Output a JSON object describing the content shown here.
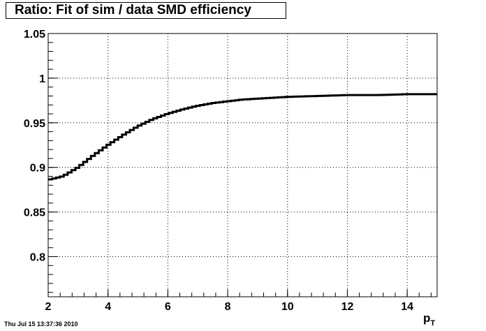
{
  "chart_data": {
    "type": "line",
    "style": "histogram-step",
    "title": "Ratio: Fit of sim / data SMD efficiency",
    "xlabel_main": "p",
    "xlabel_sub": "T",
    "ylabel": "",
    "xlim": [
      2,
      15
    ],
    "ylim": [
      0.755,
      1.05
    ],
    "grid": true,
    "x_ticks": [
      2,
      4,
      6,
      8,
      10,
      12,
      14
    ],
    "x_tick_labels": [
      "2",
      "4",
      "6",
      "8",
      "10",
      "12",
      "14"
    ],
    "y_ticks": [
      0.8,
      0.85,
      0.9,
      0.95,
      1.0,
      1.05
    ],
    "y_tick_labels": [
      "0.8",
      "0.85",
      "0.9",
      "0.95",
      "1",
      "1.05"
    ],
    "series": [
      {
        "x": [
          2.0,
          2.5,
          3.0,
          3.5,
          4.0,
          4.5,
          5.0,
          5.5,
          6.0,
          6.5,
          7.0,
          7.5,
          8.0,
          8.5,
          9.0,
          9.5,
          10.0,
          11.0,
          12.0,
          13.0,
          14.0,
          15.0
        ],
        "values": [
          0.886,
          0.89,
          0.9,
          0.913,
          0.925,
          0.936,
          0.946,
          0.954,
          0.96,
          0.965,
          0.969,
          0.972,
          0.974,
          0.976,
          0.977,
          0.978,
          0.979,
          0.98,
          0.981,
          0.981,
          0.982,
          0.982
        ],
        "color": "#000000"
      }
    ]
  },
  "timestamp": "Thu Jul 15 13:37:36 2010"
}
